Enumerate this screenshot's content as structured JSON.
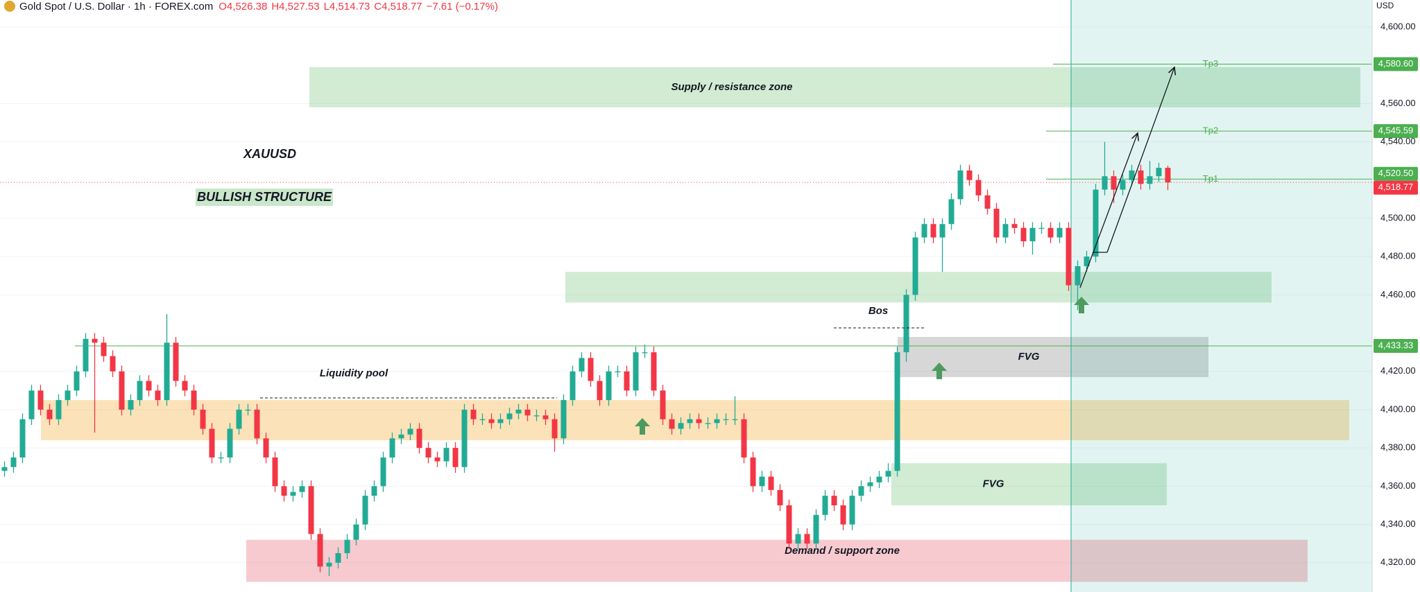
{
  "chart_data": {
    "type": "candlestick",
    "header": {
      "symbol": "Gold Spot / U.S. Dollar · 1h · FOREX.com",
      "ohlc": [
        "O4,526.38",
        "H4,527.53",
        "L4,514.73",
        "C4,518.77"
      ],
      "change": "−7.61 (−0.17%)"
    },
    "currency": "USD",
    "up_color": "#22ab94",
    "down_color": "#f23645",
    "open": [
      4368,
      4370,
      4375,
      4395,
      4410,
      4400,
      4395,
      4405,
      4410,
      4420,
      4437,
      4435,
      4428,
      4420,
      4400,
      4405,
      4415,
      4410,
      4405,
      4435,
      4415,
      4410,
      4400,
      4390,
      4375,
      4375,
      4390,
      4400,
      4400,
      4385,
      4375,
      4360,
      4355,
      4357,
      4360,
      4335,
      4318,
      4320,
      4325,
      4332,
      4340,
      4355,
      4360,
      4375,
      4385,
      4387,
      4390,
      4380,
      4375,
      4373,
      4380,
      4370,
      4400,
      4395,
      4395,
      4393,
      4395,
      4398,
      4400,
      4397,
      4397,
      4395,
      4385,
      4405,
      4420,
      4427,
      4415,
      4405,
      4420,
      4420,
      4410,
      4430,
      4430,
      4410,
      4395,
      4390,
      4393,
      4395,
      4393,
      4393,
      4395,
      4395,
      4395,
      4375,
      4360,
      4365,
      4358,
      4350,
      4330,
      4335,
      4330,
      4345,
      4355,
      4350,
      4340,
      4355,
      4360,
      4362,
      4365,
      4368,
      4430,
      4460,
      4490,
      4497,
      4490,
      4497,
      4510,
      4525,
      4520,
      4512,
      4505,
      4490,
      4497,
      4495,
      4488,
      4495,
      4495,
      4490,
      4495,
      4465,
      4475,
      4480,
      4515,
      4522,
      4515,
      4520,
      4525,
      4518,
      4522,
      4526.38
    ],
    "high": [
      4373,
      4378,
      4398,
      4413,
      4413,
      4403,
      4408,
      4413,
      4423,
      4440,
      4440,
      4438,
      4431,
      4423,
      4408,
      4418,
      4418,
      4413,
      4450,
      4438,
      4418,
      4413,
      4403,
      4393,
      4378,
      4393,
      4403,
      4403,
      4403,
      4388,
      4378,
      4363,
      4360,
      4363,
      4363,
      4338,
      4323,
      4328,
      4335,
      4343,
      4358,
      4363,
      4378,
      4388,
      4390,
      4393,
      4393,
      4383,
      4378,
      4383,
      4383,
      4403,
      4403,
      4398,
      4398,
      4398,
      4401,
      4403,
      4403,
      4400,
      4400,
      4398,
      4408,
      4423,
      4430,
      4430,
      4418,
      4423,
      4423,
      4423,
      4433,
      4434,
      4433,
      4413,
      4398,
      4396,
      4398,
      4398,
      4396,
      4398,
      4398,
      4407,
      4398,
      4378,
      4368,
      4368,
      4361,
      4353,
      4338,
      4338,
      4348,
      4358,
      4358,
      4353,
      4358,
      4363,
      4365,
      4368,
      4372,
      4433,
      4463,
      4493,
      4500,
      4500,
      4500,
      4513,
      4528,
      4528,
      4523,
      4515,
      4508,
      4500,
      4500,
      4498,
      4498,
      4498,
      4498,
      4498,
      4498,
      4478,
      4483,
      4518,
      4540,
      4525,
      4523,
      4528,
      4528,
      4530,
      4529,
      4527.53
    ],
    "low": [
      4365,
      4367,
      4372,
      4392,
      4397,
      4392,
      4392,
      4402,
      4407,
      4417,
      4388,
      4425,
      4417,
      4397,
      4397,
      4402,
      4407,
      4402,
      4402,
      4412,
      4407,
      4397,
      4387,
      4372,
      4372,
      4372,
      4387,
      4397,
      4382,
      4372,
      4357,
      4352,
      4352,
      4354,
      4332,
      4315,
      4313,
      4317,
      4322,
      4329,
      4337,
      4352,
      4357,
      4372,
      4382,
      4384,
      4377,
      4372,
      4370,
      4370,
      4367,
      4367,
      4392,
      4392,
      4390,
      4390,
      4392,
      4395,
      4394,
      4394,
      4392,
      4378,
      4382,
      4402,
      4417,
      4412,
      4402,
      4402,
      4417,
      4407,
      4407,
      4427,
      4407,
      4392,
      4387,
      4387,
      4390,
      4390,
      4390,
      4390,
      4392,
      4392,
      4372,
      4357,
      4357,
      4355,
      4347,
      4327,
      4327,
      4327,
      4327,
      4342,
      4347,
      4337,
      4337,
      4352,
      4357,
      4359,
      4362,
      4365,
      4425,
      4457,
      4487,
      4487,
      4472,
      4494,
      4507,
      4517,
      4509,
      4502,
      4487,
      4487,
      4492,
      4485,
      4481,
      4492,
      4487,
      4487,
      4462,
      4452,
      4472,
      4477,
      4512,
      4508,
      4512,
      4517,
      4515,
      4515,
      4519,
      4514.73
    ],
    "close": [
      4370,
      4375,
      4395,
      4410,
      4400,
      4395,
      4405,
      4410,
      4420,
      4437,
      4435,
      4428,
      4420,
      4400,
      4405,
      4415,
      4410,
      4405,
      4435,
      4415,
      4410,
      4400,
      4390,
      4375,
      4375,
      4390,
      4400,
      4400,
      4385,
      4375,
      4360,
      4355,
      4357,
      4360,
      4335,
      4318,
      4320,
      4325,
      4332,
      4340,
      4355,
      4360,
      4375,
      4385,
      4387,
      4390,
      4380,
      4375,
      4373,
      4380,
      4370,
      4400,
      4395,
      4395,
      4393,
      4395,
      4398,
      4400,
      4397,
      4397,
      4395,
      4385,
      4405,
      4420,
      4427,
      4415,
      4405,
      4420,
      4420,
      4410,
      4430,
      4430,
      4410,
      4395,
      4390,
      4393,
      4395,
      4393,
      4393,
      4395,
      4395,
      4395,
      4375,
      4360,
      4365,
      4358,
      4350,
      4330,
      4335,
      4330,
      4345,
      4355,
      4350,
      4340,
      4355,
      4360,
      4362,
      4365,
      4368,
      4430,
      4460,
      4490,
      4497,
      4490,
      4497,
      4510,
      4525,
      4520,
      4512,
      4505,
      4490,
      4497,
      4495,
      4488,
      4495,
      4495,
      4490,
      4495,
      4465,
      4475,
      4480,
      4515,
      4522,
      4515,
      4520,
      4525,
      4518,
      4522,
      4526.38,
      4518.77
    ],
    "ylim": [
      4304.7,
      4614.1
    ],
    "yticks": [
      {
        "value": 4320,
        "label": "4,320.00"
      },
      {
        "value": 4340,
        "label": "4,340.00"
      },
      {
        "value": 4360,
        "label": "4,360.00"
      },
      {
        "value": 4380,
        "label": "4,380.00"
      },
      {
        "value": 4400,
        "label": "4,400.00"
      },
      {
        "value": 4420,
        "label": "4,420.00"
      },
      {
        "value": 4460,
        "label": "4,460.00"
      },
      {
        "value": 4480,
        "label": "4,480.00"
      },
      {
        "value": 4500,
        "label": "4,500.00"
      },
      {
        "value": 4540,
        "label": "4,540.00"
      },
      {
        "value": 4560,
        "label": "4,560.00"
      },
      {
        "value": 4600,
        "label": "4,600.00"
      }
    ],
    "grid": true,
    "zones": [
      {
        "label": "Supply / resistance zone",
        "top": 4579,
        "bottom": 4558,
        "color": "rgba(76,175,80,0.25)"
      },
      {
        "top": 4472,
        "bottom": 4456,
        "color": "rgba(76,175,80,0.25)"
      },
      {
        "label": "FVG",
        "top": 4438,
        "bottom": 4417,
        "color": "rgba(110,110,110,0.28)"
      },
      {
        "top": 4405,
        "bottom": 4384,
        "color": "rgba(245,166,35,0.32)"
      },
      {
        "label": "FVG",
        "top": 4372,
        "bottom": 4350,
        "color": "rgba(76,175,80,0.25)"
      },
      {
        "label": "Demand / support zone",
        "top": 4332,
        "bottom": 4310,
        "color": "rgba(230,80,100,0.3)"
      }
    ],
    "price_lines": [
      {
        "name": "Tp3",
        "value": 4580.6,
        "label": "4,580.60",
        "color": "#4caf50"
      },
      {
        "name": "Tp2",
        "value": 4545.59,
        "label": "4,545.59",
        "color": "#4caf50"
      },
      {
        "name": "Tp1",
        "value": 4520.5,
        "label": "4,520.50",
        "color": "#4caf50"
      },
      {
        "value": 4433.33,
        "label": "4,433.33",
        "color": "#4caf50"
      },
      {
        "value": 4518.77,
        "label": "4,518.77",
        "color": "#f23645"
      }
    ],
    "annotations": {
      "symbol": "XAUUSD",
      "structure": "BULLISH STRUCTURE",
      "liquidity": "Liquidity  pool",
      "bos": "Bos"
    }
  }
}
